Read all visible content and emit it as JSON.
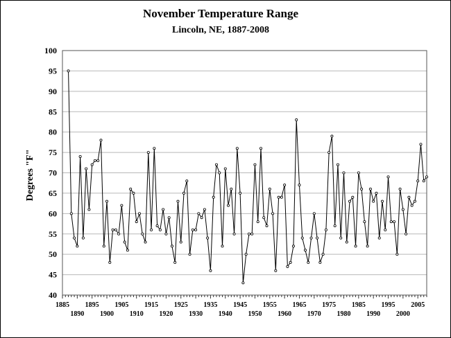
{
  "chart_data": {
    "type": "line",
    "title": "November Temperature Range",
    "subtitle": "Lincoln, NE, 1887-2008",
    "xlabel": "",
    "ylabel": "Degrees \"F\"",
    "xlim": [
      1885,
      2008
    ],
    "ylim": [
      40,
      100
    ],
    "yticks": [
      40,
      45,
      50,
      55,
      60,
      65,
      70,
      75,
      80,
      85,
      90,
      95,
      100
    ],
    "xticks_upper": [
      "1885",
      "1895",
      "1905",
      "1915",
      "1925",
      "1935",
      "1945",
      "1955",
      "1965",
      "1975",
      "1985",
      "1995",
      "2005"
    ],
    "xticks_lower": [
      "1890",
      "1900",
      "1910",
      "1920",
      "1930",
      "1940",
      "1950",
      "1960",
      "1970",
      "1980",
      "1990",
      "2000"
    ],
    "grid": true,
    "legend": "none",
    "series": [
      {
        "x": [
          1887,
          1888,
          1889,
          1890,
          1891,
          1892,
          1893,
          1894,
          1895,
          1896,
          1897,
          1898,
          1899,
          1900,
          1901,
          1902,
          1903,
          1904,
          1905,
          1906,
          1907,
          1908,
          1909,
          1910,
          1911,
          1912,
          1913,
          1914,
          1915,
          1916,
          1917,
          1918,
          1919,
          1920,
          1921,
          1922,
          1923,
          1924,
          1925,
          1926,
          1927,
          1928,
          1929,
          1930,
          1931,
          1932,
          1933,
          1934,
          1935,
          1936,
          1937,
          1938,
          1939,
          1940,
          1941,
          1942,
          1943,
          1944,
          1945,
          1946,
          1947,
          1948,
          1949,
          1950,
          1951,
          1952,
          1953,
          1954,
          1955,
          1956,
          1957,
          1958,
          1959,
          1960,
          1961,
          1962,
          1963,
          1964,
          1965,
          1966,
          1967,
          1968,
          1969,
          1970,
          1971,
          1972,
          1973,
          1974,
          1975,
          1976,
          1977,
          1978,
          1979,
          1980,
          1981,
          1982,
          1983,
          1984,
          1985,
          1986,
          1987,
          1988,
          1989,
          1990,
          1991,
          1992,
          1993,
          1994,
          1995,
          1996,
          1997,
          1998,
          1999,
          2000,
          2001,
          2002,
          2003,
          2004,
          2005,
          2006,
          2007,
          2008
        ],
        "values": [
          95,
          60,
          54,
          52,
          74,
          54,
          71,
          61,
          72,
          73,
          73,
          78,
          52,
          63,
          48,
          56,
          56,
          55,
          62,
          53,
          51,
          66,
          65,
          58,
          60,
          55,
          53,
          75,
          56,
          76,
          57,
          56,
          61,
          55,
          59,
          52,
          48,
          63,
          53,
          65,
          68,
          50,
          56,
          56,
          60,
          59,
          61,
          54,
          46,
          64,
          72,
          70,
          52,
          71,
          62,
          66,
          55,
          76,
          65,
          43,
          50,
          55,
          55,
          72,
          58,
          76,
          59,
          57,
          66,
          60,
          46,
          64,
          64,
          67,
          47,
          48,
          52,
          83,
          67,
          54,
          51,
          48,
          54,
          60,
          54,
          48,
          50,
          56,
          75,
          79,
          57,
          72,
          54,
          70,
          53,
          63,
          64,
          52,
          70,
          66,
          58,
          52,
          66,
          63,
          65,
          54,
          63,
          56,
          69,
          58,
          58,
          50,
          66,
          61,
          55,
          64,
          62,
          63,
          68,
          77,
          68,
          69
        ]
      }
    ]
  }
}
